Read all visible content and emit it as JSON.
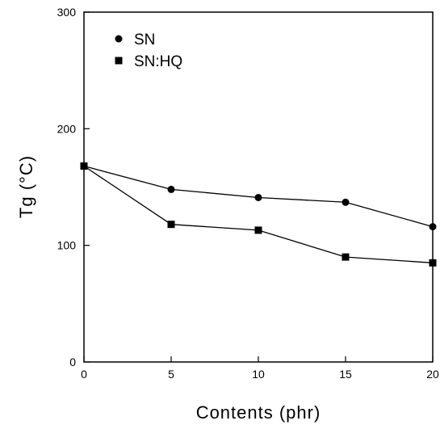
{
  "chart_data": {
    "type": "line",
    "title": "",
    "xlabel": "Contents (phr)",
    "ylabel": "Tg (°C)",
    "x": [
      0,
      5,
      10,
      15,
      20
    ],
    "xlim": [
      0,
      20
    ],
    "ylim": [
      0,
      300
    ],
    "x_ticks": [
      0,
      5,
      10,
      15,
      20
    ],
    "y_ticks": [
      0,
      100,
      200,
      300
    ],
    "grid": false,
    "legend_position": "top-left",
    "series": [
      {
        "name": "SN",
        "marker": "circle",
        "color": "#000000",
        "values": [
          168,
          148,
          141,
          137,
          116
        ]
      },
      {
        "name": "SN:HQ",
        "marker": "square",
        "color": "#000000",
        "values": [
          168,
          118,
          113,
          90,
          85
        ]
      }
    ]
  }
}
